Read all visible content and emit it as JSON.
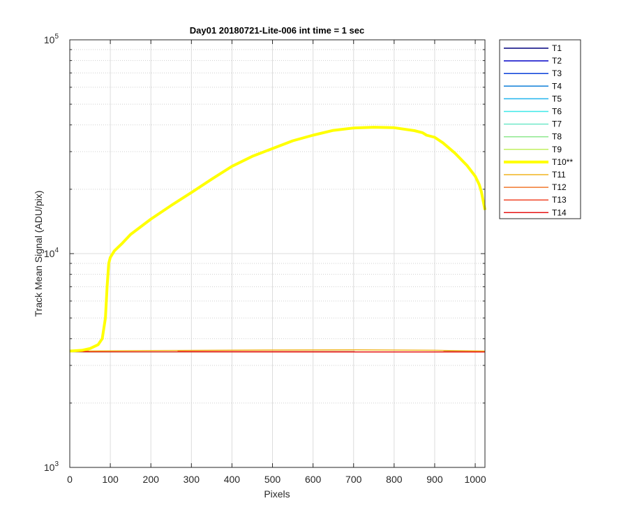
{
  "chart_data": {
    "type": "line",
    "title": "Day01 20180721-Lite-006 int time = 1 sec",
    "xlabel": "Pixels",
    "ylabel": "Track Mean Signal (ADU/pix)",
    "xlim": [
      0,
      1024
    ],
    "ylim": [
      1000,
      100000
    ],
    "yscale": "log",
    "grid": true,
    "legend_position": "outside-top-right",
    "x_ticks": [
      0,
      100,
      200,
      300,
      400,
      500,
      600,
      700,
      800,
      900,
      1000
    ],
    "y_ticks": [
      {
        "base": "10",
        "exp": "3",
        "value": 1000
      },
      {
        "base": "10",
        "exp": "4",
        "value": 10000
      },
      {
        "base": "10",
        "exp": "5",
        "value": 100000
      }
    ],
    "series": [
      {
        "name": "T1",
        "color": "#00007f",
        "width": 1.5,
        "x": [
          0,
          1024
        ],
        "y": [
          3480,
          3470
        ]
      },
      {
        "name": "T2",
        "color": "#0000c8",
        "width": 1.5,
        "x": [
          0,
          1024
        ],
        "y": [
          3480,
          3470
        ]
      },
      {
        "name": "T3",
        "color": "#0a3fd8",
        "width": 1.5,
        "x": [
          0,
          1024
        ],
        "y": [
          3480,
          3470
        ]
      },
      {
        "name": "T4",
        "color": "#0f7fd8",
        "width": 1.5,
        "x": [
          0,
          1024
        ],
        "y": [
          3480,
          3470
        ]
      },
      {
        "name": "T5",
        "color": "#22b5ee",
        "width": 1.5,
        "x": [
          0,
          1024
        ],
        "y": [
          3480,
          3470
        ]
      },
      {
        "name": "T6",
        "color": "#3ce8e8",
        "width": 1.5,
        "x": [
          0,
          1024
        ],
        "y": [
          3480,
          3470
        ]
      },
      {
        "name": "T7",
        "color": "#6fe8c8",
        "width": 1.5,
        "x": [
          0,
          1024
        ],
        "y": [
          3480,
          3470
        ]
      },
      {
        "name": "T8",
        "color": "#8fe88f",
        "width": 1.5,
        "x": [
          0,
          1024
        ],
        "y": [
          3480,
          3470
        ]
      },
      {
        "name": "T9",
        "color": "#c0f060",
        "width": 1.5,
        "x": [
          0,
          1024
        ],
        "y": [
          3480,
          3470
        ]
      },
      {
        "name": "T10**",
        "color": "#ffff00",
        "width": 4,
        "x": [
          0,
          30,
          50,
          70,
          80,
          88,
          92,
          96,
          100,
          110,
          130,
          150,
          200,
          250,
          300,
          350,
          400,
          450,
          500,
          550,
          600,
          650,
          700,
          750,
          800,
          850,
          870,
          880,
          890,
          900,
          920,
          950,
          980,
          1000,
          1010,
          1015,
          1020,
          1024
        ],
        "y": [
          3500,
          3530,
          3600,
          3750,
          4000,
          5000,
          7000,
          9000,
          9600,
          10300,
          11200,
          12300,
          14500,
          16800,
          19300,
          22300,
          25600,
          28500,
          31000,
          33700,
          35800,
          37700,
          38700,
          39000,
          38800,
          37600,
          36800,
          35800,
          35400,
          35000,
          33000,
          29500,
          25800,
          23000,
          21000,
          19500,
          17500,
          16000
        ]
      },
      {
        "name": "T11",
        "color": "#f0b41e",
        "width": 1.5,
        "x": [
          0,
          200,
          500,
          700,
          900,
          1024
        ],
        "y": [
          3500,
          3520,
          3540,
          3545,
          3530,
          3500
        ]
      },
      {
        "name": "T12",
        "color": "#f0782d",
        "width": 1.5,
        "x": [
          0,
          1024
        ],
        "y": [
          3480,
          3470
        ]
      },
      {
        "name": "T13",
        "color": "#f04628",
        "width": 1.5,
        "x": [
          0,
          1024
        ],
        "y": [
          3480,
          3470
        ]
      },
      {
        "name": "T14",
        "color": "#e61414",
        "width": 1.5,
        "x": [
          0,
          1024
        ],
        "y": [
          3480,
          3470
        ]
      }
    ]
  }
}
